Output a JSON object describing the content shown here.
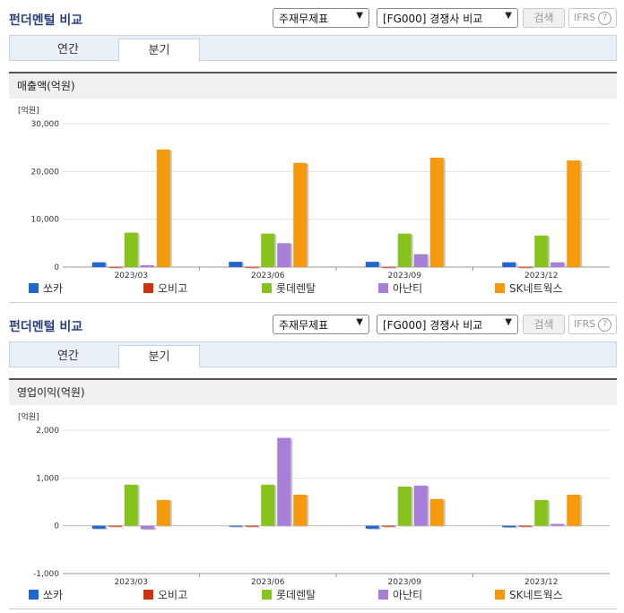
{
  "panels": [
    {
      "title": "펀더멘털 비교",
      "select_statement": "주재무제표",
      "select_peer": "[FG000] 경쟁사 비교",
      "search_label": "검색",
      "ifrs_label": "IFRS",
      "help_glyph": "?",
      "tabs": [
        "연간",
        "분기"
      ],
      "active_tab": "분기",
      "section_title": "매출액(억원)"
    },
    {
      "title": "펀더멘털 비교",
      "select_statement": "주재무제표",
      "select_peer": "[FG000] 경쟁사 비교",
      "search_label": "검색",
      "ifrs_label": "IFRS",
      "help_glyph": "?",
      "tabs": [
        "연간",
        "분기"
      ],
      "active_tab": "분기",
      "section_title": "영업이익(억원)"
    }
  ],
  "colors": {
    "series": [
      "#2266cc",
      "#cc3311",
      "#88c21c",
      "#a77ed8",
      "#f59a0c"
    ],
    "accent_title": "#2b3f7a"
  },
  "icons": [
    "chevron-down-icon",
    "help-icon"
  ],
  "chart_data": [
    {
      "type": "bar",
      "unit_label": "[억원]",
      "categories": [
        "2023/03",
        "2023/06",
        "2023/09",
        "2023/12"
      ],
      "ylim": [
        0,
        30000
      ],
      "yticks": [
        0,
        10000,
        20000,
        30000
      ],
      "ytick_labels": [
        "0",
        "10,000",
        "20,000",
        "30,000"
      ],
      "grid": true,
      "legend": "bottom",
      "series": [
        {
          "name": "쏘카",
          "values": [
            1000,
            1100,
            1100,
            1000
          ]
        },
        {
          "name": "오비고",
          "values": [
            60,
            60,
            60,
            60
          ]
        },
        {
          "name": "롯데렌탈",
          "values": [
            7200,
            7000,
            7000,
            6600
          ]
        },
        {
          "name": "아난티",
          "values": [
            400,
            5000,
            2700,
            1000
          ]
        },
        {
          "name": "SK네트웍스",
          "values": [
            24600,
            21800,
            22900,
            22300
          ]
        }
      ]
    },
    {
      "type": "bar",
      "unit_label": "[억원]",
      "categories": [
        "2023/03",
        "2023/06",
        "2023/09",
        "2023/12"
      ],
      "ylim": [
        -1000,
        2000
      ],
      "yticks": [
        -1000,
        0,
        1000,
        2000
      ],
      "ytick_labels": [
        "-1,000",
        "0",
        "1,000",
        "2,000"
      ],
      "grid": true,
      "legend": "bottom",
      "series": [
        {
          "name": "쏘카",
          "values": [
            -60,
            0,
            -60,
            -30
          ]
        },
        {
          "name": "오비고",
          "values": [
            -5,
            -5,
            -5,
            -5
          ]
        },
        {
          "name": "롯데렌탈",
          "values": [
            860,
            860,
            820,
            540
          ]
        },
        {
          "name": "아난티",
          "values": [
            -70,
            1840,
            840,
            40
          ]
        },
        {
          "name": "SK네트웍스",
          "values": [
            540,
            650,
            560,
            650
          ]
        }
      ]
    }
  ]
}
